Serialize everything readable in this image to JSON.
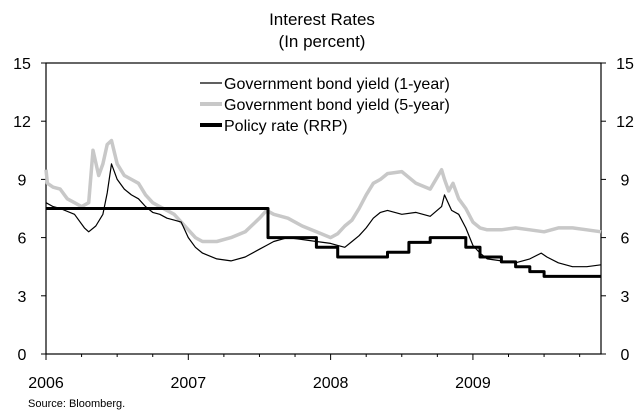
{
  "chart_data": {
    "type": "line",
    "title": "Interest Rates",
    "subtitle": "(In percent)",
    "source": "Source: Bloomberg.",
    "y_range": [
      0,
      15
    ],
    "x_range": [
      2006.0,
      2009.9
    ],
    "y_ticks": [
      "0",
      "3",
      "6",
      "9",
      "12",
      "15"
    ],
    "x_ticks": [
      "2006",
      "2007",
      "2008",
      "2009"
    ],
    "grid": false,
    "legend_position": "top-center",
    "series": [
      {
        "name": "Government bond yield (1-year)",
        "color": "#000000",
        "style": "thin",
        "x": [
          2006.0,
          2006.05,
          2006.1,
          2006.2,
          2006.27,
          2006.3,
          2006.35,
          2006.4,
          2006.43,
          2006.46,
          2006.5,
          2006.55,
          2006.6,
          2006.65,
          2006.7,
          2006.75,
          2006.8,
          2006.85,
          2006.9,
          2006.95,
          2007.0,
          2007.05,
          2007.1,
          2007.2,
          2007.3,
          2007.4,
          2007.5,
          2007.55,
          2007.6,
          2007.7,
          2007.8,
          2007.9,
          2008.0,
          2008.05,
          2008.1,
          2008.15,
          2008.2,
          2008.25,
          2008.3,
          2008.35,
          2008.4,
          2008.5,
          2008.6,
          2008.7,
          2008.78,
          2008.8,
          2008.85,
          2008.9,
          2008.95,
          2009.0,
          2009.05,
          2009.1,
          2009.2,
          2009.3,
          2009.4,
          2009.48,
          2009.52,
          2009.6,
          2009.7,
          2009.8,
          2009.9
        ],
        "y": [
          7.8,
          7.6,
          7.5,
          7.2,
          6.5,
          6.3,
          6.6,
          7.2,
          8.3,
          9.8,
          9.0,
          8.5,
          8.2,
          8.0,
          7.6,
          7.3,
          7.2,
          7.0,
          6.9,
          6.8,
          6.0,
          5.5,
          5.2,
          4.9,
          4.8,
          5.0,
          5.4,
          5.6,
          5.8,
          6.0,
          5.9,
          5.8,
          5.7,
          5.6,
          5.5,
          5.8,
          6.1,
          6.5,
          7.0,
          7.3,
          7.4,
          7.2,
          7.3,
          7.1,
          7.6,
          8.2,
          7.4,
          7.2,
          6.5,
          5.6,
          5.2,
          4.9,
          4.8,
          4.7,
          4.9,
          5.2,
          5.0,
          4.7,
          4.5,
          4.5,
          4.6
        ]
      },
      {
        "name": "Government bond yield (5-year)",
        "color": "#c8c8c8",
        "style": "thick",
        "x": [
          2006.0,
          2006.01,
          2006.05,
          2006.1,
          2006.15,
          2006.2,
          2006.25,
          2006.3,
          2006.33,
          2006.37,
          2006.4,
          2006.43,
          2006.46,
          2006.5,
          2006.55,
          2006.6,
          2006.65,
          2006.7,
          2006.75,
          2006.8,
          2006.85,
          2006.9,
          2006.95,
          2007.0,
          2007.05,
          2007.1,
          2007.2,
          2007.3,
          2007.4,
          2007.5,
          2007.55,
          2007.6,
          2007.7,
          2007.8,
          2007.9,
          2008.0,
          2008.05,
          2008.1,
          2008.15,
          2008.2,
          2008.25,
          2008.3,
          2008.35,
          2008.4,
          2008.5,
          2008.6,
          2008.7,
          2008.78,
          2008.8,
          2008.83,
          2008.86,
          2008.9,
          2008.95,
          2009.0,
          2009.05,
          2009.1,
          2009.2,
          2009.3,
          2009.4,
          2009.5,
          2009.6,
          2009.7,
          2009.8,
          2009.9
        ],
        "y": [
          9.5,
          8.8,
          8.6,
          8.5,
          8.0,
          7.8,
          7.6,
          7.8,
          10.5,
          9.2,
          9.8,
          10.8,
          11.0,
          9.8,
          9.2,
          9.0,
          8.8,
          8.2,
          7.8,
          7.6,
          7.4,
          7.2,
          6.8,
          6.4,
          6.0,
          5.8,
          5.8,
          6.0,
          6.3,
          7.0,
          7.4,
          7.2,
          7.0,
          6.6,
          6.3,
          6.0,
          6.2,
          6.6,
          6.9,
          7.5,
          8.2,
          8.8,
          9.0,
          9.3,
          9.4,
          8.8,
          8.5,
          9.5,
          9.0,
          8.4,
          8.8,
          8.0,
          7.5,
          6.8,
          6.5,
          6.4,
          6.4,
          6.5,
          6.4,
          6.3,
          6.5,
          6.5,
          6.4,
          6.3
        ]
      },
      {
        "name": "Policy rate (RRP)",
        "color": "#000000",
        "style": "bold-step",
        "x": [
          2006.0,
          2007.56,
          2007.56,
          2007.9,
          2007.9,
          2008.05,
          2008.05,
          2008.4,
          2008.4,
          2008.55,
          2008.55,
          2008.7,
          2008.7,
          2008.95,
          2008.95,
          2009.05,
          2009.05,
          2009.2,
          2009.2,
          2009.3,
          2009.3,
          2009.4,
          2009.4,
          2009.5,
          2009.5,
          2009.9
        ],
        "y": [
          7.5,
          7.5,
          6.0,
          6.0,
          5.5,
          5.5,
          5.0,
          5.0,
          5.25,
          5.25,
          5.75,
          5.75,
          6.0,
          6.0,
          5.5,
          5.5,
          5.0,
          5.0,
          4.75,
          4.75,
          4.5,
          4.5,
          4.25,
          4.25,
          4.0,
          4.0
        ]
      }
    ]
  }
}
